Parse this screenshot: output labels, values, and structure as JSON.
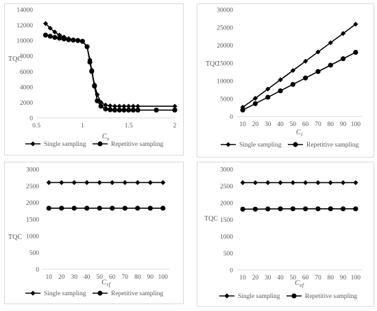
{
  "legend": {
    "series1": "Single sampling",
    "series2": "Repetitive sampling"
  },
  "colors": {
    "series": "#000000",
    "axis": "#d9d9d9",
    "text": "#595959"
  },
  "chart_data": [
    {
      "type": "line",
      "ylabel": "TQC",
      "xlabel_main": "C",
      "xlabel_sub": "s",
      "xlim": [
        0.5,
        2
      ],
      "ylim": [
        0,
        14000
      ],
      "xticks": [
        "0.5",
        "1",
        "1.5",
        "2"
      ],
      "yticks": [
        "0",
        "2000",
        "4000",
        "6000",
        "8000",
        "10000",
        "12000",
        "14000"
      ],
      "legend_position": "bottom",
      "grid": false,
      "series": [
        {
          "name": "Single sampling",
          "x": [
            0.6,
            0.65,
            0.7,
            0.75,
            0.8,
            0.85,
            0.9,
            0.95,
            1.0,
            1.05,
            1.08,
            1.1,
            1.13,
            1.16,
            1.2,
            1.25,
            1.3,
            1.35,
            1.4,
            1.45,
            1.5,
            1.55,
            1.6,
            2.0
          ],
          "y": [
            12200,
            11600,
            11100,
            10700,
            10450,
            10250,
            10100,
            10000,
            9900,
            9200,
            7500,
            6200,
            4300,
            3000,
            2000,
            1650,
            1550,
            1500,
            1500,
            1500,
            1500,
            1500,
            1500,
            1500
          ]
        },
        {
          "name": "Repetitive sampling",
          "x": [
            0.6,
            0.65,
            0.7,
            0.75,
            0.8,
            0.85,
            0.9,
            0.95,
            1.0,
            1.05,
            1.08,
            1.1,
            1.13,
            1.16,
            1.2,
            1.25,
            1.3,
            1.35,
            1.4,
            1.45,
            1.5,
            1.55,
            1.6,
            1.8,
            2.0
          ],
          "y": [
            10700,
            10550,
            10400,
            10300,
            10200,
            10100,
            10050,
            10000,
            9900,
            9200,
            7200,
            6000,
            4100,
            2200,
            1500,
            1150,
            1050,
            1000,
            1000,
            1000,
            1000,
            1000,
            1000,
            1000,
            1000
          ]
        }
      ]
    },
    {
      "type": "line",
      "ylabel": "TQC",
      "xlabel_main": "C",
      "xlabel_sub": "i",
      "ylim": [
        0,
        30000
      ],
      "categories": [
        "10",
        "20",
        "30",
        "40",
        "50",
        "60",
        "70",
        "80",
        "90",
        "100"
      ],
      "yticks": [
        "0",
        "5000",
        "10000",
        "15000",
        "20000",
        "25000",
        "30000"
      ],
      "legend_position": "bottom",
      "grid": false,
      "series": [
        {
          "name": "Single sampling",
          "values": [
            2600,
            5100,
            7700,
            10300,
            12900,
            15500,
            18100,
            20700,
            23300,
            25900
          ]
        },
        {
          "name": "Repetitive sampling",
          "values": [
            1800,
            3600,
            5400,
            7200,
            9000,
            10800,
            12600,
            14400,
            16200,
            18000
          ]
        }
      ]
    },
    {
      "type": "line",
      "ylabel": "TQC",
      "xlabel_main": "C",
      "xlabel_sub": "rf",
      "ylim": [
        0,
        3000
      ],
      "categories": [
        "10",
        "20",
        "30",
        "40",
        "50",
        "60",
        "70",
        "80",
        "90",
        "100"
      ],
      "yticks": [
        "0",
        "500",
        "1000",
        "1500",
        "2000",
        "2500",
        "3000"
      ],
      "legend_position": "bottom",
      "grid": false,
      "series": [
        {
          "name": "Single sampling",
          "values": [
            2600,
            2600,
            2600,
            2600,
            2600,
            2600,
            2600,
            2600,
            2600,
            2600
          ]
        },
        {
          "name": "Repetitive sampling",
          "values": [
            1830,
            1830,
            1830,
            1830,
            1830,
            1830,
            1830,
            1830,
            1830,
            1830
          ]
        }
      ]
    },
    {
      "type": "line",
      "ylabel": "TQC",
      "xlabel_main": "C",
      "xlabel_sub": "ef",
      "ylim": [
        0,
        3000
      ],
      "categories": [
        "10",
        "20",
        "30",
        "40",
        "50",
        "60",
        "70",
        "80",
        "90",
        "100"
      ],
      "yticks": [
        "0",
        "500",
        "1000",
        "1500",
        "2000",
        "2500",
        "3000"
      ],
      "legend_position": "bottom",
      "grid": false,
      "series": [
        {
          "name": "Single sampling",
          "values": [
            2600,
            2600,
            2600,
            2600,
            2600,
            2600,
            2600,
            2600,
            2600,
            2600
          ]
        },
        {
          "name": "Repetitive sampling",
          "values": [
            1810,
            1810,
            1815,
            1820,
            1820,
            1820,
            1820,
            1820,
            1820,
            1820
          ]
        }
      ]
    }
  ]
}
